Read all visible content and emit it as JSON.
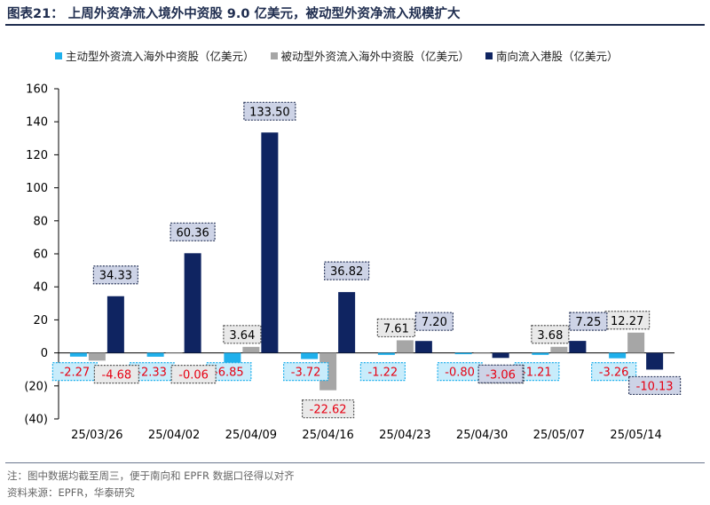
{
  "title": "图表21：   上周外资净流入境外中资股 9.0 亿美元，被动型外资净流入规模扩大",
  "footnote": "注：图中数据均截至周三，便于南向和 EPFR 数据口径得以对齐",
  "source": "资料来源：EPFR，华泰研究",
  "colors": {
    "active": "#1fb0ec",
    "passive": "#a6a6a6",
    "southbound": "#0f2461",
    "negative_label": "#e60012"
  },
  "chart_data": {
    "type": "bar",
    "categories": [
      "25/03/26",
      "25/04/02",
      "25/04/09",
      "25/04/16",
      "25/04/23",
      "25/04/30",
      "25/05/07",
      "25/05/14"
    ],
    "series": [
      {
        "name": "主动型外资流入海外中资股（亿美元）",
        "values": [
          -2.27,
          -2.33,
          -6.85,
          -3.72,
          -1.22,
          -0.8,
          -1.21,
          -3.26
        ]
      },
      {
        "name": "被动型外资流入海外中资股（亿美元）",
        "values": [
          -4.68,
          -0.06,
          3.64,
          -22.62,
          7.61,
          -0.5,
          3.68,
          12.27
        ]
      },
      {
        "name": "南向流入港股（亿美元）",
        "values": [
          34.33,
          60.36,
          133.5,
          36.82,
          7.2,
          -3.06,
          7.25,
          -10.13
        ]
      }
    ],
    "ylim": [
      -40,
      160
    ],
    "yticks": [
      -40,
      -20,
      0,
      20,
      40,
      60,
      80,
      100,
      120,
      140,
      160
    ],
    "ytick_labels": [
      "(40)",
      "(20)",
      "0",
      "20",
      "40",
      "60",
      "80",
      "100",
      "120",
      "140",
      "160"
    ],
    "legend": "top",
    "grid": false
  }
}
